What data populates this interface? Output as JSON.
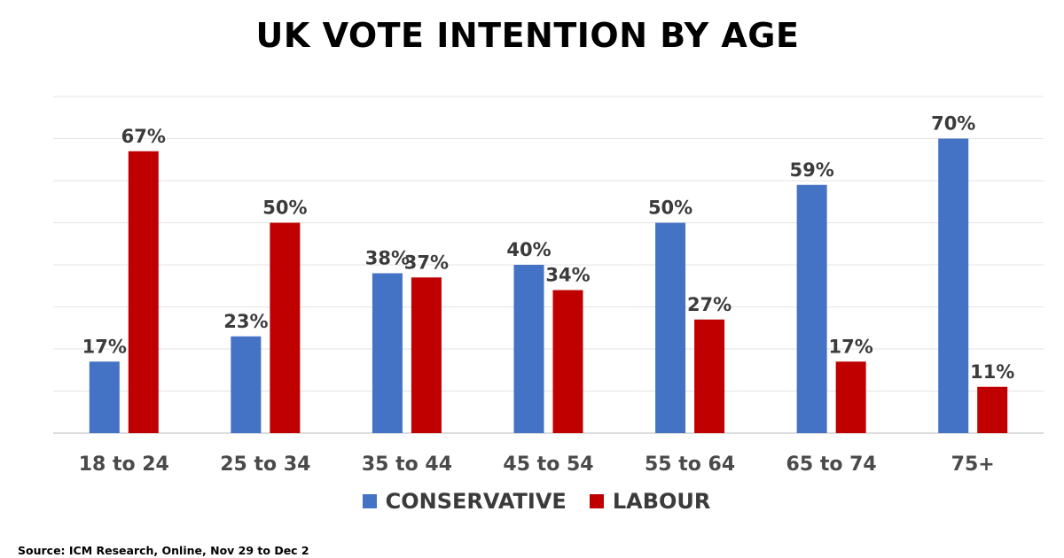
{
  "chart_data": {
    "type": "bar",
    "title": "UK VOTE INTENTION BY AGE",
    "categories": [
      "18 to 24",
      "25 to 34",
      "35 to 44",
      "45 to 54",
      "55 to 64",
      "65 to 74",
      "75+"
    ],
    "series": [
      {
        "name": "CONSERVATIVE",
        "color": "#4472C4",
        "values": [
          17,
          23,
          38,
          40,
          50,
          59,
          70
        ],
        "labels": [
          "17%",
          "23%",
          "38%",
          "40%",
          "50%",
          "59%",
          "70%"
        ]
      },
      {
        "name": "LABOUR",
        "color": "#C00000",
        "values": [
          67,
          50,
          37,
          34,
          27,
          17,
          11
        ],
        "labels": [
          "67%",
          "50%",
          "37%",
          "34%",
          "27%",
          "17%",
          "11%"
        ]
      }
    ],
    "ylim": [
      0,
      80
    ],
    "grid": true,
    "legend_position": "bottom"
  },
  "source": "Source: ICM Research, Online,  Nov 29 to Dec 2"
}
